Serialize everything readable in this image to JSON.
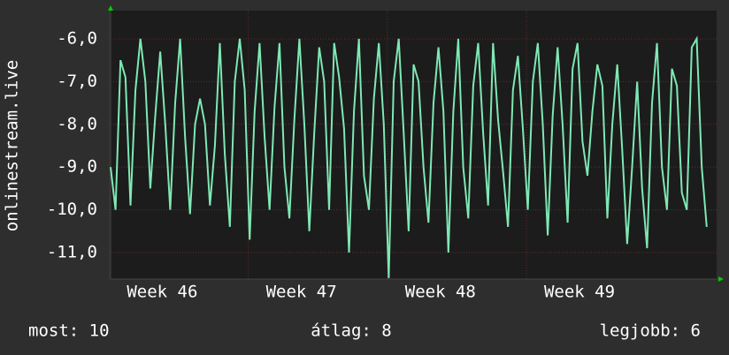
{
  "chart_data": {
    "type": "line",
    "y_label": "onlinestream.live",
    "color": "#7ee8b4",
    "x": [
      0,
      0.25,
      0.5,
      0.75,
      1,
      1.25,
      1.5,
      1.75,
      2,
      2.25,
      2.5,
      2.75,
      3,
      3.25,
      3.5,
      3.75,
      4,
      4.25,
      4.5,
      4.75,
      5,
      5.25,
      5.5,
      5.75,
      6,
      6.25,
      6.5,
      6.75,
      7,
      7.25,
      7.5,
      7.75,
      8,
      8.25,
      8.5,
      8.75,
      9,
      9.25,
      9.5,
      9.75,
      10,
      10.25,
      10.5,
      10.75,
      11,
      11.25,
      11.5,
      11.75,
      12,
      12.25,
      12.5,
      12.75,
      13,
      13.25,
      13.5,
      13.75,
      14,
      14.25,
      14.5,
      14.75,
      15,
      15.25,
      15.5,
      15.75,
      16,
      16.25,
      16.5,
      16.75,
      17,
      17.25,
      17.5,
      17.75,
      18,
      18.25,
      18.5,
      18.75,
      19,
      19.25,
      19.5,
      19.75,
      20,
      20.25,
      20.5,
      20.75,
      21,
      21.25,
      21.5,
      21.75,
      22,
      22.25,
      22.5,
      22.75,
      23,
      23.25,
      23.5,
      23.75,
      24,
      24.25,
      24.5,
      24.75,
      25,
      25.25,
      25.5,
      25.75,
      26,
      26.25,
      26.5,
      26.75,
      27,
      27.25,
      27.5,
      27.75,
      28,
      28.25,
      28.5,
      28.75,
      29,
      29.25,
      29.5,
      29.75,
      30
    ],
    "values": [
      -9.0,
      -10.0,
      -6.5,
      -6.9,
      -9.9,
      -7.2,
      -6.0,
      -7.0,
      -9.5,
      -7.8,
      -6.3,
      -8.0,
      -10.0,
      -7.5,
      -6.0,
      -8.3,
      -10.1,
      -8.0,
      -7.4,
      -8.0,
      -9.9,
      -8.5,
      -6.1,
      -8.7,
      -10.4,
      -7.0,
      -6.0,
      -7.2,
      -10.7,
      -7.7,
      -6.1,
      -8.3,
      -10.0,
      -7.6,
      -6.1,
      -9.0,
      -10.2,
      -7.9,
      -6.0,
      -8.0,
      -10.5,
      -8.2,
      -6.2,
      -7.0,
      -10.0,
      -6.1,
      -6.9,
      -8.1,
      -11.0,
      -7.7,
      -6.0,
      -9.2,
      -10.0,
      -7.4,
      -6.1,
      -8.0,
      -11.6,
      -7.0,
      -6.0,
      -8.2,
      -10.5,
      -6.6,
      -7.0,
      -9.0,
      -10.3,
      -7.5,
      -6.2,
      -7.7,
      -11.0,
      -7.7,
      -6.0,
      -9.0,
      -10.2,
      -7.1,
      -6.1,
      -8.2,
      -9.9,
      -6.1,
      -7.9,
      -9.1,
      -10.4,
      -7.2,
      -6.4,
      -8.1,
      -10.0,
      -7.0,
      -6.1,
      -8.0,
      -10.6,
      -7.8,
      -6.2,
      -8.0,
      -10.3,
      -6.7,
      -6.1,
      -8.4,
      -9.2,
      -7.7,
      -6.6,
      -7.1,
      -10.2,
      -8.0,
      -6.6,
      -8.6,
      -10.8,
      -9.0,
      -7.0,
      -9.5,
      -10.9,
      -7.5,
      -6.1,
      -9.0,
      -10.0,
      -6.7,
      -7.1,
      -9.6,
      -10.0,
      -6.2,
      -6.0,
      -9.0,
      -10.4
    ],
    "xlim": [
      0,
      30.5
    ],
    "xticks": [
      {
        "value": 2.6,
        "label": "Week 46"
      },
      {
        "value": 9.6,
        "label": "Week 47"
      },
      {
        "value": 16.6,
        "label": "Week 48"
      },
      {
        "value": 23.6,
        "label": "Week 49"
      }
    ],
    "ylim": [
      -11.62,
      -5.34
    ],
    "yticks": [
      {
        "value": -6,
        "label": "-6,0"
      },
      {
        "value": -7,
        "label": "-7,0"
      },
      {
        "value": -8,
        "label": "-8,0"
      },
      {
        "value": -9,
        "label": "-9,0"
      },
      {
        "value": -10,
        "label": "-10,0"
      },
      {
        "value": -11,
        "label": "-11,0"
      }
    ],
    "grid": true,
    "stats": [
      "most: 10",
      "átlag: 8",
      "legjobb: 6"
    ]
  }
}
